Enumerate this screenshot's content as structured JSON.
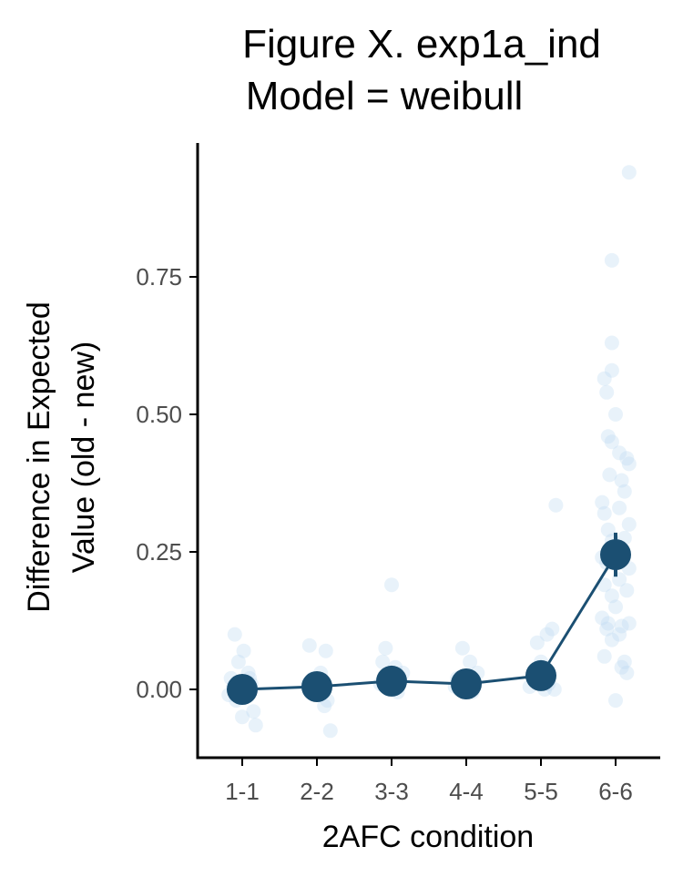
{
  "chart_data": {
    "type": "scatter",
    "title_lines": [
      "Figure X. exp1a_ind",
      "Model = weibull"
    ],
    "xlabel": "2AFC condition",
    "ylabel_lines": [
      "Difference in Expected",
      "Value (old - new)"
    ],
    "categories": [
      "1-1",
      "2-2",
      "3-3",
      "4-4",
      "5-5",
      "6-6"
    ],
    "yticks": [
      0.0,
      0.25,
      0.5,
      0.75
    ],
    "ytick_labels": [
      "0.00",
      "0.25",
      "0.50",
      "0.75"
    ],
    "ylim": [
      -0.12,
      0.99
    ],
    "grid": false,
    "legend": "none",
    "colors": {
      "mean": "#1b4f72",
      "points": "#bdd9f2",
      "axis": "#000000"
    },
    "mean_series": {
      "values": [
        0.0,
        0.005,
        0.015,
        0.01,
        0.025,
        0.245
      ],
      "errors": [
        0.008,
        0.008,
        0.01,
        0.008,
        0.01,
        0.04
      ]
    },
    "jitter_points": [
      {
        "cat": 0,
        "dx": -0.1,
        "y": 0.1
      },
      {
        "cat": 0,
        "dx": 0.02,
        "y": 0.07
      },
      {
        "cat": 0,
        "dx": -0.05,
        "y": 0.05
      },
      {
        "cat": 0,
        "dx": 0.08,
        "y": 0.03
      },
      {
        "cat": 0,
        "dx": -0.15,
        "y": 0.02
      },
      {
        "cat": 0,
        "dx": 0.12,
        "y": 0.01
      },
      {
        "cat": 0,
        "dx": -0.02,
        "y": 0.0
      },
      {
        "cat": 0,
        "dx": 0.05,
        "y": -0.01
      },
      {
        "cat": 0,
        "dx": -0.08,
        "y": -0.02
      },
      {
        "cat": 0,
        "dx": 0.15,
        "y": -0.04
      },
      {
        "cat": 0,
        "dx": 0.0,
        "y": -0.05
      },
      {
        "cat": 0,
        "dx": 0.18,
        "y": -0.065
      },
      {
        "cat": 0,
        "dx": -0.12,
        "y": 0.005
      },
      {
        "cat": 0,
        "dx": 0.1,
        "y": 0.02
      },
      {
        "cat": 0,
        "dx": -0.18,
        "y": -0.01
      },
      {
        "cat": 1,
        "dx": -0.1,
        "y": 0.08
      },
      {
        "cat": 1,
        "dx": 0.12,
        "y": 0.07
      },
      {
        "cat": 1,
        "dx": 0.05,
        "y": 0.03
      },
      {
        "cat": 1,
        "dx": -0.05,
        "y": 0.02
      },
      {
        "cat": 1,
        "dx": 0.02,
        "y": 0.0
      },
      {
        "cat": 1,
        "dx": 0.14,
        "y": -0.02
      },
      {
        "cat": 1,
        "dx": 0.1,
        "y": -0.03
      },
      {
        "cat": 1,
        "dx": 0.18,
        "y": -0.075
      },
      {
        "cat": 1,
        "dx": -0.12,
        "y": 0.01
      },
      {
        "cat": 2,
        "dx": -0.12,
        "y": 0.05
      },
      {
        "cat": 2,
        "dx": -0.08,
        "y": 0.075
      },
      {
        "cat": 2,
        "dx": 0.0,
        "y": 0.19
      },
      {
        "cat": 2,
        "dx": 0.05,
        "y": 0.04
      },
      {
        "cat": 2,
        "dx": 0.1,
        "y": 0.02
      },
      {
        "cat": 2,
        "dx": -0.03,
        "y": 0.0
      },
      {
        "cat": 2,
        "dx": 0.15,
        "y": 0.03
      },
      {
        "cat": 2,
        "dx": -0.15,
        "y": 0.01
      },
      {
        "cat": 2,
        "dx": 0.08,
        "y": -0.005
      },
      {
        "cat": 3,
        "dx": -0.05,
        "y": 0.075
      },
      {
        "cat": 3,
        "dx": 0.05,
        "y": 0.05
      },
      {
        "cat": 3,
        "dx": -0.12,
        "y": 0.02
      },
      {
        "cat": 3,
        "dx": 0.1,
        "y": 0.01
      },
      {
        "cat": 3,
        "dx": 0.0,
        "y": 0.0
      },
      {
        "cat": 3,
        "dx": 0.15,
        "y": 0.03
      },
      {
        "cat": 3,
        "dx": -0.15,
        "y": 0.005
      },
      {
        "cat": 3,
        "dx": 0.08,
        "y": -0.005
      },
      {
        "cat": 4,
        "dx": 0.15,
        "y": 0.11
      },
      {
        "cat": 4,
        "dx": 0.08,
        "y": 0.1
      },
      {
        "cat": 4,
        "dx": -0.05,
        "y": 0.085
      },
      {
        "cat": 4,
        "dx": 0.0,
        "y": 0.05
      },
      {
        "cat": 4,
        "dx": -0.1,
        "y": 0.02
      },
      {
        "cat": 4,
        "dx": 0.1,
        "y": 0.01
      },
      {
        "cat": 4,
        "dx": -0.15,
        "y": 0.005
      },
      {
        "cat": 4,
        "dx": 0.18,
        "y": 0.0
      },
      {
        "cat": 4,
        "dx": 0.05,
        "y": 0.0
      },
      {
        "cat": 4,
        "dx": 0.2,
        "y": 0.335
      },
      {
        "cat": 5,
        "dx": 0.18,
        "y": 0.94
      },
      {
        "cat": 5,
        "dx": -0.05,
        "y": 0.78
      },
      {
        "cat": 5,
        "dx": -0.05,
        "y": 0.63
      },
      {
        "cat": 5,
        "dx": -0.05,
        "y": 0.58
      },
      {
        "cat": 5,
        "dx": -0.15,
        "y": 0.565
      },
      {
        "cat": 5,
        "dx": -0.12,
        "y": 0.54
      },
      {
        "cat": 5,
        "dx": 0.0,
        "y": 0.5
      },
      {
        "cat": 5,
        "dx": -0.1,
        "y": 0.46
      },
      {
        "cat": 5,
        "dx": -0.05,
        "y": 0.45
      },
      {
        "cat": 5,
        "dx": 0.05,
        "y": 0.43
      },
      {
        "cat": 5,
        "dx": 0.15,
        "y": 0.42
      },
      {
        "cat": 5,
        "dx": 0.18,
        "y": 0.41
      },
      {
        "cat": 5,
        "dx": -0.08,
        "y": 0.39
      },
      {
        "cat": 5,
        "dx": 0.08,
        "y": 0.38
      },
      {
        "cat": 5,
        "dx": 0.12,
        "y": 0.36
      },
      {
        "cat": 5,
        "dx": -0.18,
        "y": 0.34
      },
      {
        "cat": 5,
        "dx": -0.15,
        "y": 0.32
      },
      {
        "cat": 5,
        "dx": 0.05,
        "y": 0.33
      },
      {
        "cat": 5,
        "dx": 0.18,
        "y": 0.3
      },
      {
        "cat": 5,
        "dx": -0.1,
        "y": 0.29
      },
      {
        "cat": 5,
        "dx": 0.12,
        "y": 0.275
      },
      {
        "cat": 5,
        "dx": -0.05,
        "y": 0.27
      },
      {
        "cat": 5,
        "dx": 0.1,
        "y": 0.25
      },
      {
        "cat": 5,
        "dx": -0.18,
        "y": 0.24
      },
      {
        "cat": 5,
        "dx": -0.12,
        "y": 0.23
      },
      {
        "cat": 5,
        "dx": 0.18,
        "y": 0.22
      },
      {
        "cat": 5,
        "dx": 0.05,
        "y": 0.2
      },
      {
        "cat": 5,
        "dx": -0.15,
        "y": 0.19
      },
      {
        "cat": 5,
        "dx": 0.15,
        "y": 0.18
      },
      {
        "cat": 5,
        "dx": -0.05,
        "y": 0.17
      },
      {
        "cat": 5,
        "dx": 0.0,
        "y": 0.15
      },
      {
        "cat": 5,
        "dx": -0.18,
        "y": 0.13
      },
      {
        "cat": 5,
        "dx": -0.1,
        "y": 0.12
      },
      {
        "cat": 5,
        "dx": 0.08,
        "y": 0.115
      },
      {
        "cat": 5,
        "dx": -0.12,
        "y": 0.11
      },
      {
        "cat": 5,
        "dx": 0.18,
        "y": 0.12
      },
      {
        "cat": 5,
        "dx": 0.05,
        "y": 0.1
      },
      {
        "cat": 5,
        "dx": -0.05,
        "y": 0.09
      },
      {
        "cat": 5,
        "dx": 0.12,
        "y": 0.05
      },
      {
        "cat": 5,
        "dx": 0.08,
        "y": 0.04
      },
      {
        "cat": 5,
        "dx": 0.15,
        "y": 0.03
      },
      {
        "cat": 5,
        "dx": -0.15,
        "y": 0.06
      },
      {
        "cat": 5,
        "dx": 0.0,
        "y": -0.02
      }
    ]
  }
}
